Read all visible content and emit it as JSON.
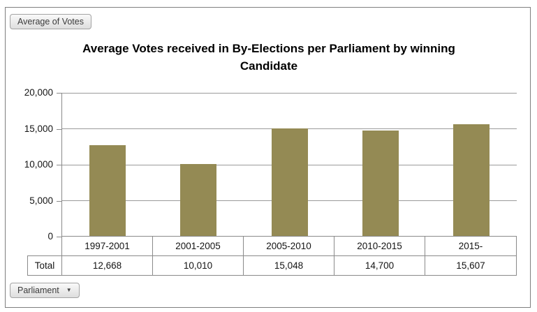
{
  "chart_data": {
    "type": "bar",
    "title": "Average Votes received in By-Elections per Parliament by winning Candidate",
    "categories": [
      "1997-2001",
      "2001-2005",
      "2005-2010",
      "2010-2015",
      "2015-"
    ],
    "values": [
      12668,
      10010,
      15048,
      14700,
      15607
    ],
    "value_labels": [
      "12,668",
      "10,010",
      "15,048",
      "14,700",
      "15,607"
    ],
    "series_name": "Total",
    "ylim": [
      0,
      20000
    ],
    "ytick_values": [
      20000,
      15000,
      10000,
      5000,
      0
    ],
    "ytick_labels": [
      "20,000",
      "15,000",
      "10,000",
      "5,000",
      "0"
    ],
    "grid": true,
    "legend": "none",
    "bar_color": "#948A54"
  },
  "pivot_buttons": {
    "value_field_label": "Average of Votes",
    "axis_field_label": "Parliament",
    "axis_field_arrow": "▼"
  },
  "data_table": {
    "row_label": "Total"
  },
  "colors": {
    "bar": "#948A54",
    "gridline": "#9A9A9A",
    "axis_line": "#8A8A8A",
    "frame_border": "#7F7F7F"
  }
}
